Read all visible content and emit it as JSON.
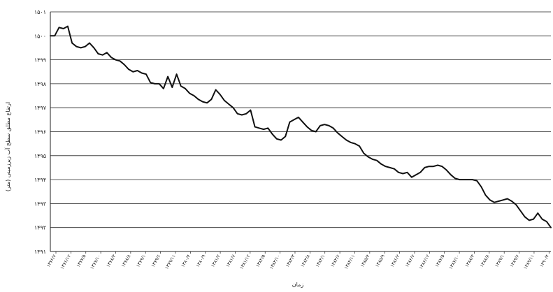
{
  "chart_data": {
    "type": "line",
    "title": "",
    "xlabel": "زمان",
    "ylabel": "ارتفاع مطلق سطح آب زیرزمینی (متر)",
    "ylim": [
      1491,
      1501
    ],
    "y_ticks": [
      "۱۵۰۱",
      "۱۵۰۰",
      "۱۴۹۹",
      "۱۴۹۸",
      "۱۴۹۷",
      "۱۴۹۶",
      "۱۴۹۵",
      "۱۴۹۴",
      "۱۴۹۳",
      "۱۴۹۲",
      "۱۴۹۱"
    ],
    "grid": true,
    "x_tick_labels": [
      "۱۳۷۶/۷",
      "۱۳۷۶/۱۲",
      "۱۳۷۷/۵",
      "۱۳۷۷/۱۰",
      "۱۳۷۸/۳",
      "۱۳۷۸/۸",
      "۱۳۷۹/۱",
      "۱۳۷۹/۶",
      "۱۳۷۹/۱۱",
      "۱۳۸۰/۴",
      "۱۳۸۰/۹",
      "۱۳۸۱/۲",
      "۱۳۸۱/۷",
      "۱۳۸۱/۱۲",
      "۱۳۸۲/۵",
      "۱۳۸۲/۱۰",
      "۱۳۸۳/۳",
      "۱۳۸۳/۸",
      "۱۳۸۴/۱",
      "۱۳۸۴/۶",
      "۱۳۸۴/۱۱",
      "۱۳۸۵/۴",
      "۱۳۸۵/۹",
      "۱۳۸۶/۲",
      "۱۳۸۶/۷",
      "۱۳۸۶/۱۲",
      "۱۳۸۷/۵",
      "۱۳۸۷/۱۰",
      "۱۳۸۸/۳",
      "۱۳۸۸/۸",
      "۱۳۸۹/۱",
      "۱۳۸۹/۶",
      "۱۳۸۹/۱۱",
      "۱۳۹۰/۴"
    ],
    "series": [
      {
        "color": "#111111",
        "values": [
          1500.0,
          1500.0,
          1500.35,
          1500.3,
          1500.4,
          1499.7,
          1499.55,
          1499.5,
          1499.55,
          1499.7,
          1499.5,
          1499.25,
          1499.2,
          1499.3,
          1499.1,
          1499.0,
          1498.95,
          1498.8,
          1498.6,
          1498.5,
          1498.55,
          1498.45,
          1498.4,
          1498.05,
          1498.0,
          1498.0,
          1497.8,
          1498.3,
          1497.85,
          1498.4,
          1497.9,
          1497.8,
          1497.6,
          1497.5,
          1497.35,
          1497.25,
          1497.2,
          1497.35,
          1497.75,
          1497.55,
          1497.3,
          1497.15,
          1497.0,
          1496.75,
          1496.7,
          1496.75,
          1496.9,
          1496.2,
          1496.15,
          1496.1,
          1496.15,
          1495.9,
          1495.7,
          1495.65,
          1495.8,
          1496.4,
          1496.5,
          1496.6,
          1496.4,
          1496.2,
          1496.05,
          1496.0,
          1496.25,
          1496.3,
          1496.25,
          1496.15,
          1495.95,
          1495.8,
          1495.65,
          1495.55,
          1495.5,
          1495.4,
          1495.1,
          1494.95,
          1494.85,
          1494.8,
          1494.65,
          1494.55,
          1494.5,
          1494.45,
          1494.3,
          1494.25,
          1494.3,
          1494.1,
          1494.2,
          1494.3,
          1494.5,
          1494.55,
          1494.55,
          1494.6,
          1494.55,
          1494.4,
          1494.2,
          1494.05,
          1494.0,
          1494.0,
          1494.0,
          1494.0,
          1493.95,
          1493.7,
          1493.35,
          1493.15,
          1493.05,
          1493.1,
          1493.15,
          1493.2,
          1493.1,
          1492.95,
          1492.7,
          1492.45,
          1492.3,
          1492.35,
          1492.6,
          1492.35,
          1492.25,
          1492.0
        ]
      }
    ]
  }
}
